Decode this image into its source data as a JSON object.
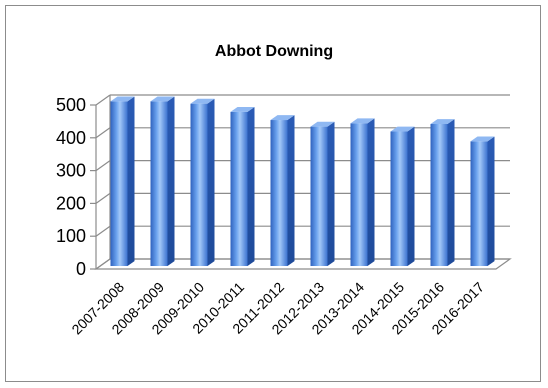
{
  "chart_data": {
    "type": "bar",
    "title": "Abbot Downing",
    "xlabel": "",
    "ylabel": "",
    "ylim": [
      0,
      500
    ],
    "yticks": [
      0,
      100,
      200,
      300,
      400,
      500
    ],
    "grid": true,
    "legend": "none",
    "style": "3d-column",
    "categories": [
      "2007-2008",
      "2008-2009",
      "2009-2010",
      "2010-2011",
      "2011-2012",
      "2012-2013",
      "2013-2014",
      "2014-2015",
      "2015-2016",
      "2016-2017"
    ],
    "values": [
      502,
      502,
      495,
      470,
      445,
      425,
      435,
      410,
      433,
      380
    ],
    "colors": {
      "bar_front": "#4f86e0",
      "bar_light": "#9ec4f7",
      "bar_dark": "#2a5bb5",
      "grid": "#8c8c8c"
    }
  }
}
